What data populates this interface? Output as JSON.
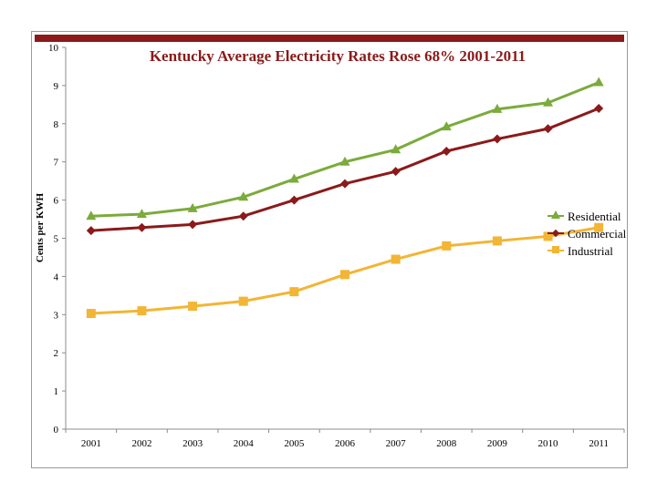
{
  "chart_data": {
    "type": "line",
    "title": "Kentucky Average Electricity Rates Rose 68% 2001-2011",
    "xlabel": "",
    "ylabel": "Cents per KWH",
    "categories": [
      "2001",
      "2002",
      "2003",
      "2004",
      "2005",
      "2006",
      "2007",
      "2008",
      "2009",
      "2010",
      "2011"
    ],
    "ylim": [
      0,
      10
    ],
    "yticks": [
      0,
      1,
      2,
      3,
      4,
      5,
      6,
      7,
      8,
      9,
      10
    ],
    "grid": false,
    "legend_position": "right",
    "series": [
      {
        "name": "Residential",
        "color": "#7bab3b",
        "marker": "triangle",
        "values": [
          5.58,
          5.63,
          5.78,
          6.08,
          6.55,
          7.0,
          7.32,
          7.92,
          8.38,
          8.55,
          9.08
        ]
      },
      {
        "name": "Commercial",
        "color": "#8b1a1a",
        "marker": "diamond",
        "values": [
          5.2,
          5.28,
          5.36,
          5.58,
          6.0,
          6.43,
          6.75,
          7.28,
          7.6,
          7.87,
          8.4
        ]
      },
      {
        "name": "Industrial",
        "color": "#f2b535",
        "marker": "square",
        "values": [
          3.03,
          3.1,
          3.22,
          3.35,
          3.6,
          4.05,
          4.45,
          4.8,
          4.93,
          5.05,
          5.28
        ]
      }
    ]
  }
}
